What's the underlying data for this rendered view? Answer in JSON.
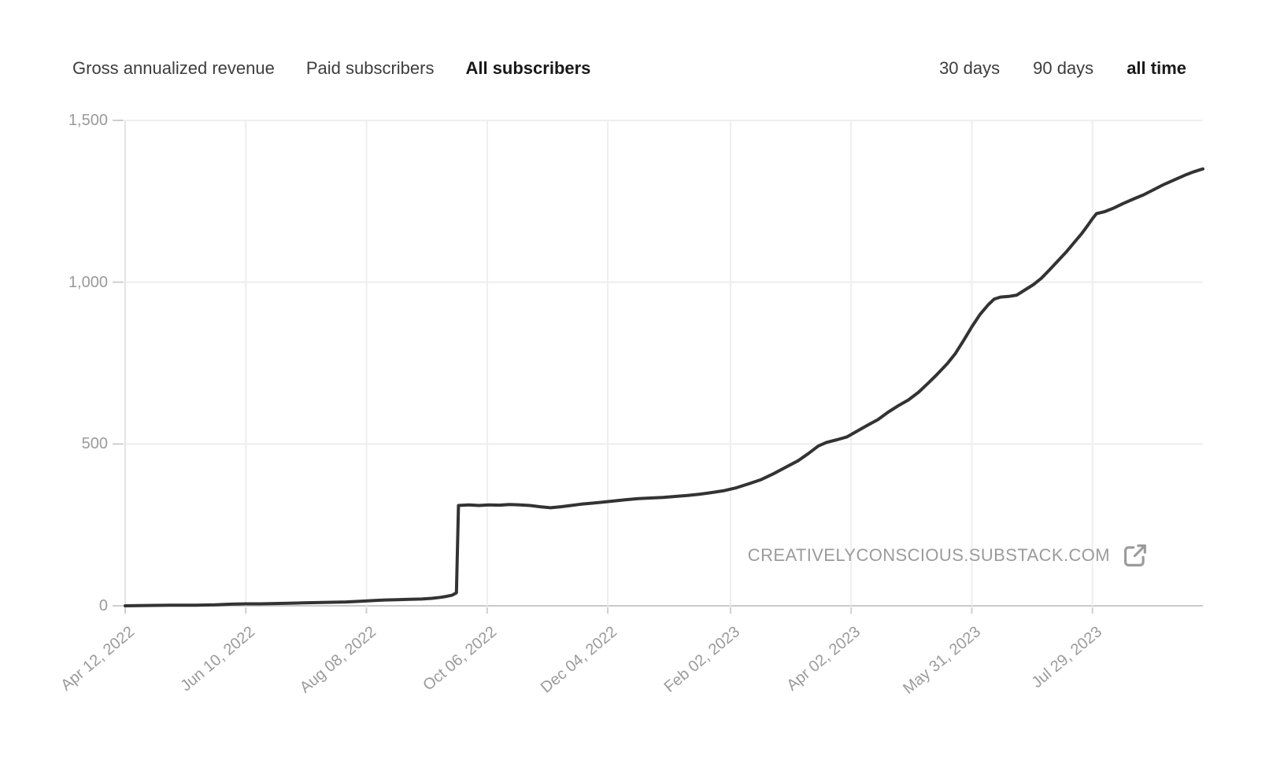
{
  "tabs": {
    "metric": [
      {
        "label": "Gross annualized revenue",
        "active": false
      },
      {
        "label": "Paid subscribers",
        "active": false
      },
      {
        "label": "All subscribers",
        "active": true
      }
    ],
    "range": [
      {
        "label": "30 days",
        "active": false
      },
      {
        "label": "90 days",
        "active": false
      },
      {
        "label": "all time",
        "active": true
      }
    ]
  },
  "watermark": {
    "text": "CREATIVELYCONSCIOUS.SUBSTACK.COM",
    "icon": "external-link-icon"
  },
  "colors": {
    "background": "#ffffff",
    "line": "#333333",
    "grid": "#eeeeee",
    "baseline": "#c9c9c9",
    "axis": "#e3e3e3",
    "tick": "#cfcfcf",
    "tick_label": "#9a9a9a",
    "tab_inactive": "#3d3d3d",
    "tab_active": "#191919",
    "watermark": "#9b9b9b"
  },
  "chart_data": {
    "type": "line",
    "title": "",
    "xlabel": "",
    "ylabel": "",
    "ylim": [
      0,
      1500
    ],
    "grid": true,
    "legend": "none",
    "yticks": [
      {
        "label": "0",
        "value": 0
      },
      {
        "label": "500",
        "value": 500
      },
      {
        "label": "1,000",
        "value": 1000
      },
      {
        "label": "1,500",
        "value": 1500
      }
    ],
    "xticks": [
      {
        "label": "Apr 12, 2022",
        "date": "2022-04-12"
      },
      {
        "label": "Jun 10, 2022",
        "date": "2022-06-10"
      },
      {
        "label": "Aug 08, 2022",
        "date": "2022-08-08"
      },
      {
        "label": "Oct 06, 2022",
        "date": "2022-10-06"
      },
      {
        "label": "Dec 04, 2022",
        "date": "2022-12-04"
      },
      {
        "label": "Feb 02, 2023",
        "date": "2023-02-02"
      },
      {
        "label": "Apr 02, 2023",
        "date": "2023-04-02"
      },
      {
        "label": "May 31, 2023",
        "date": "2023-05-31"
      },
      {
        "label": "Jul 29, 2023",
        "date": "2023-07-29"
      }
    ],
    "series": [
      {
        "name": "All subscribers",
        "points": [
          [
            "2022-04-12",
            0
          ],
          [
            "2022-04-22",
            1
          ],
          [
            "2022-05-04",
            2
          ],
          [
            "2022-05-16",
            2
          ],
          [
            "2022-05-26",
            3
          ],
          [
            "2022-06-03",
            5
          ],
          [
            "2022-06-10",
            6
          ],
          [
            "2022-06-17",
            6
          ],
          [
            "2022-06-24",
            7
          ],
          [
            "2022-07-01",
            8
          ],
          [
            "2022-07-08",
            9
          ],
          [
            "2022-07-15",
            10
          ],
          [
            "2022-07-22",
            11
          ],
          [
            "2022-07-29",
            12
          ],
          [
            "2022-08-05",
            14
          ],
          [
            "2022-08-11",
            16
          ],
          [
            "2022-08-17",
            18
          ],
          [
            "2022-08-23",
            19
          ],
          [
            "2022-08-29",
            20
          ],
          [
            "2022-09-04",
            21
          ],
          [
            "2022-09-09",
            23
          ],
          [
            "2022-09-13",
            26
          ],
          [
            "2022-09-16",
            29
          ],
          [
            "2022-09-19",
            33
          ],
          [
            "2022-09-21",
            40
          ],
          [
            "2022-09-22",
            310
          ],
          [
            "2022-09-27",
            312
          ],
          [
            "2022-10-02",
            310
          ],
          [
            "2022-10-07",
            312
          ],
          [
            "2022-10-12",
            311
          ],
          [
            "2022-10-17",
            313
          ],
          [
            "2022-10-22",
            312
          ],
          [
            "2022-10-27",
            310
          ],
          [
            "2022-11-01",
            306
          ],
          [
            "2022-11-06",
            303
          ],
          [
            "2022-11-11",
            306
          ],
          [
            "2022-11-16",
            310
          ],
          [
            "2022-11-21",
            314
          ],
          [
            "2022-11-26",
            317
          ],
          [
            "2022-12-01",
            320
          ],
          [
            "2022-12-07",
            324
          ],
          [
            "2022-12-13",
            328
          ],
          [
            "2022-12-19",
            331
          ],
          [
            "2022-12-25",
            333
          ],
          [
            "2022-12-31",
            335
          ],
          [
            "2023-01-06",
            338
          ],
          [
            "2023-01-12",
            341
          ],
          [
            "2023-01-18",
            345
          ],
          [
            "2023-01-24",
            350
          ],
          [
            "2023-01-30",
            356
          ],
          [
            "2023-02-05",
            365
          ],
          [
            "2023-02-11",
            377
          ],
          [
            "2023-02-17",
            390
          ],
          [
            "2023-02-23",
            408
          ],
          [
            "2023-03-01",
            428
          ],
          [
            "2023-03-07",
            448
          ],
          [
            "2023-03-12",
            470
          ],
          [
            "2023-03-17",
            494
          ],
          [
            "2023-03-21",
            505
          ],
          [
            "2023-03-26",
            513
          ],
          [
            "2023-03-31",
            522
          ],
          [
            "2023-04-05",
            540
          ],
          [
            "2023-04-10",
            558
          ],
          [
            "2023-04-15",
            575
          ],
          [
            "2023-04-20",
            598
          ],
          [
            "2023-04-25",
            618
          ],
          [
            "2023-04-30",
            636
          ],
          [
            "2023-05-05",
            660
          ],
          [
            "2023-05-10",
            690
          ],
          [
            "2023-05-14",
            715
          ],
          [
            "2023-05-19",
            748
          ],
          [
            "2023-05-23",
            780
          ],
          [
            "2023-05-27",
            820
          ],
          [
            "2023-05-31",
            862
          ],
          [
            "2023-06-04",
            900
          ],
          [
            "2023-06-08",
            930
          ],
          [
            "2023-06-11",
            948
          ],
          [
            "2023-06-14",
            954
          ],
          [
            "2023-06-18",
            956
          ],
          [
            "2023-06-22",
            960
          ],
          [
            "2023-06-26",
            976
          ],
          [
            "2023-06-30",
            992
          ],
          [
            "2023-07-04",
            1012
          ],
          [
            "2023-07-08",
            1038
          ],
          [
            "2023-07-12",
            1065
          ],
          [
            "2023-07-16",
            1092
          ],
          [
            "2023-07-20",
            1122
          ],
          [
            "2023-07-24",
            1152
          ],
          [
            "2023-07-27",
            1178
          ],
          [
            "2023-07-29",
            1196
          ],
          [
            "2023-07-31",
            1212
          ],
          [
            "2023-08-04",
            1218
          ],
          [
            "2023-08-08",
            1228
          ],
          [
            "2023-08-13",
            1243
          ],
          [
            "2023-08-18",
            1257
          ],
          [
            "2023-08-23",
            1270
          ],
          [
            "2023-08-28",
            1286
          ],
          [
            "2023-09-02",
            1302
          ],
          [
            "2023-09-07",
            1316
          ],
          [
            "2023-09-12",
            1330
          ],
          [
            "2023-09-16",
            1340
          ],
          [
            "2023-09-21",
            1350
          ]
        ]
      }
    ]
  }
}
